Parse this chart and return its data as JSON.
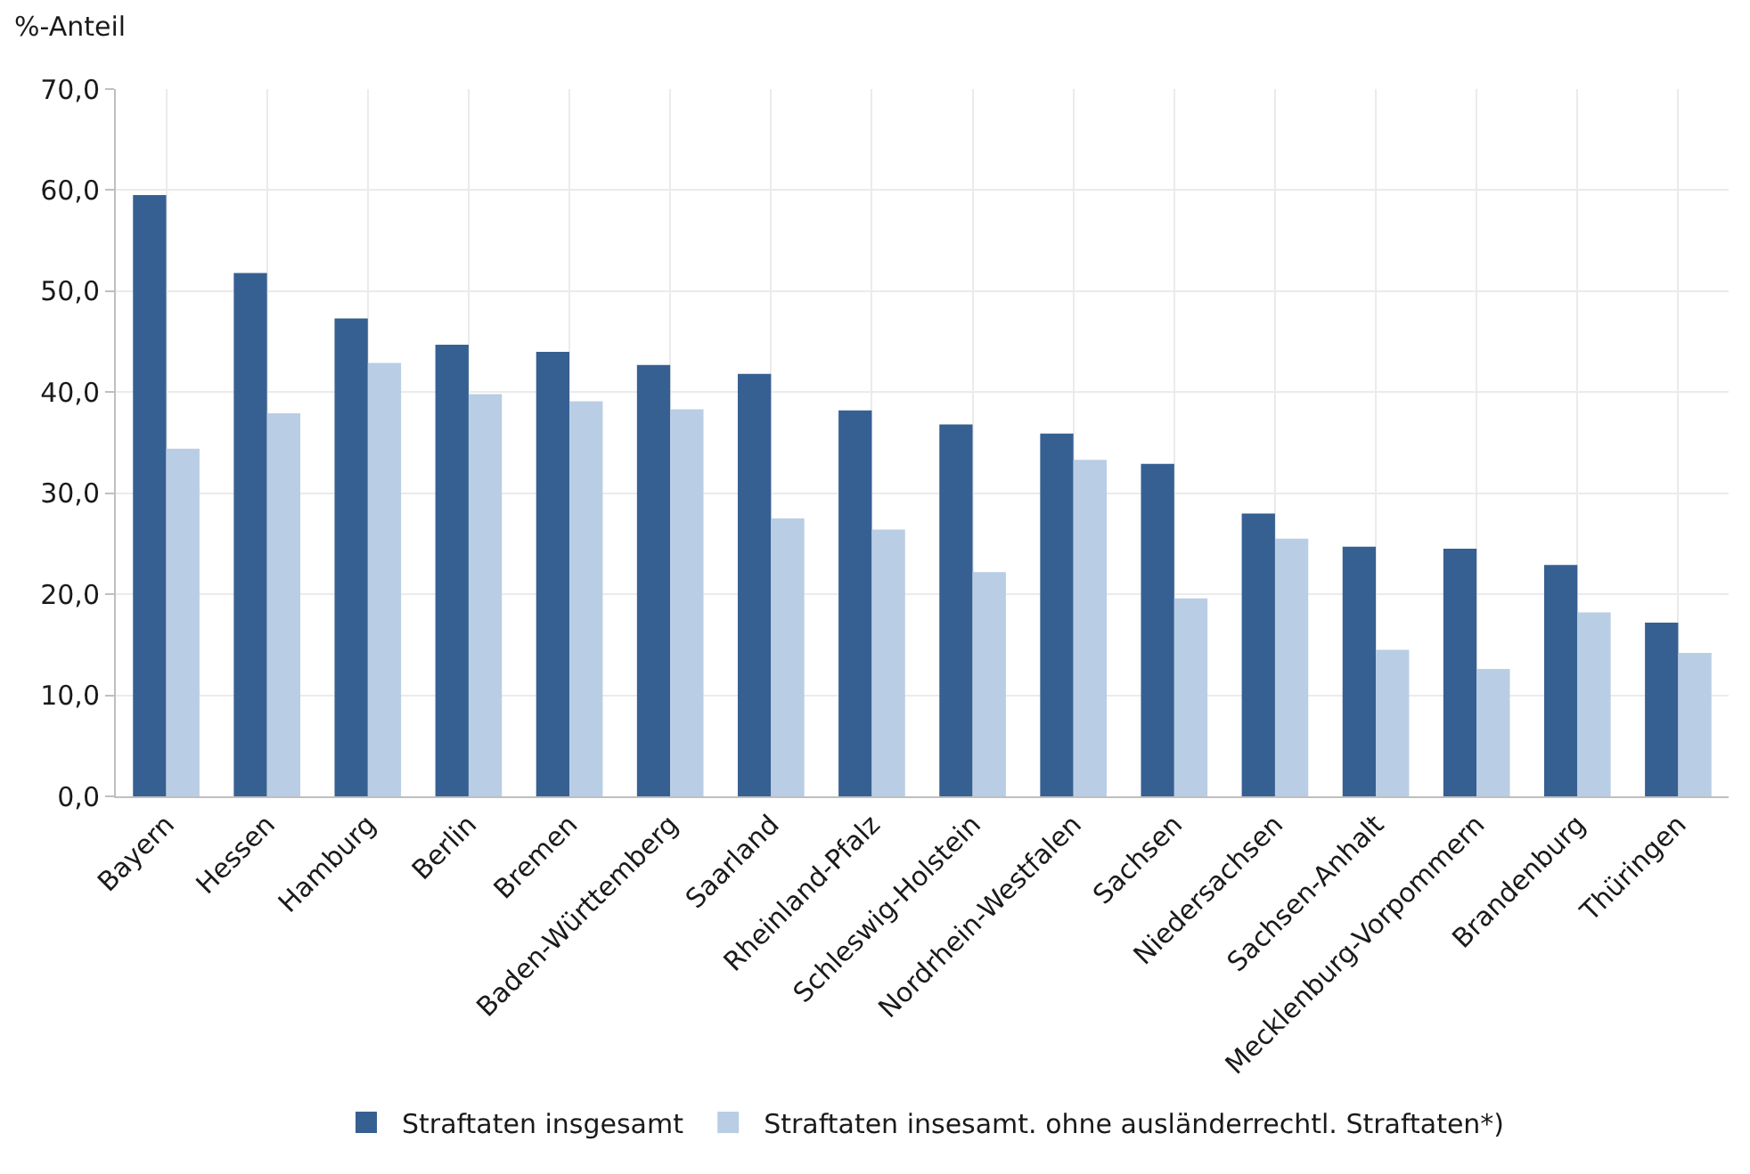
{
  "chart_data": {
    "type": "bar",
    "ylabel": "%-Anteil",
    "categories": [
      "Bayern",
      "Hessen",
      "Hamburg",
      "Berlin",
      "Bremen",
      "Baden-Württemberg",
      "Saarland",
      "Rheinland-Pfalz",
      "Schleswig-Holstein",
      "Nordrhein-Westfalen",
      "Sachsen",
      "Niedersachsen",
      "Sachsen-Anhalt",
      "Mecklenburg-Vorpommern",
      "Brandenburg",
      "Thüringen"
    ],
    "series": [
      {
        "name": "Straftaten insgesamt",
        "color": "#366092",
        "values": [
          59.5,
          51.8,
          47.3,
          44.7,
          44.0,
          42.7,
          41.8,
          38.2,
          36.8,
          35.9,
          32.9,
          28.0,
          24.7,
          24.5,
          22.9,
          17.2
        ]
      },
      {
        "name": "Straftaten insesamt. ohne ausländerrechtl. Straftaten*)",
        "color": "#b9cde4",
        "values": [
          34.4,
          37.9,
          42.9,
          39.8,
          39.1,
          38.3,
          27.5,
          26.4,
          22.2,
          33.3,
          19.6,
          25.5,
          14.5,
          12.6,
          18.2,
          14.2
        ]
      }
    ],
    "ylim": [
      0,
      70
    ],
    "yticks": [
      {
        "value": 0,
        "label": "0,0"
      },
      {
        "value": 10,
        "label": "10,0"
      },
      {
        "value": 20,
        "label": "20,0"
      },
      {
        "value": 30,
        "label": "30,0"
      },
      {
        "value": 40,
        "label": "40,0"
      },
      {
        "value": 50,
        "label": "50,0"
      },
      {
        "value": 60,
        "label": "60,0"
      },
      {
        "value": 70,
        "label": "70,0"
      }
    ],
    "grid": true,
    "legend": "bottom"
  }
}
